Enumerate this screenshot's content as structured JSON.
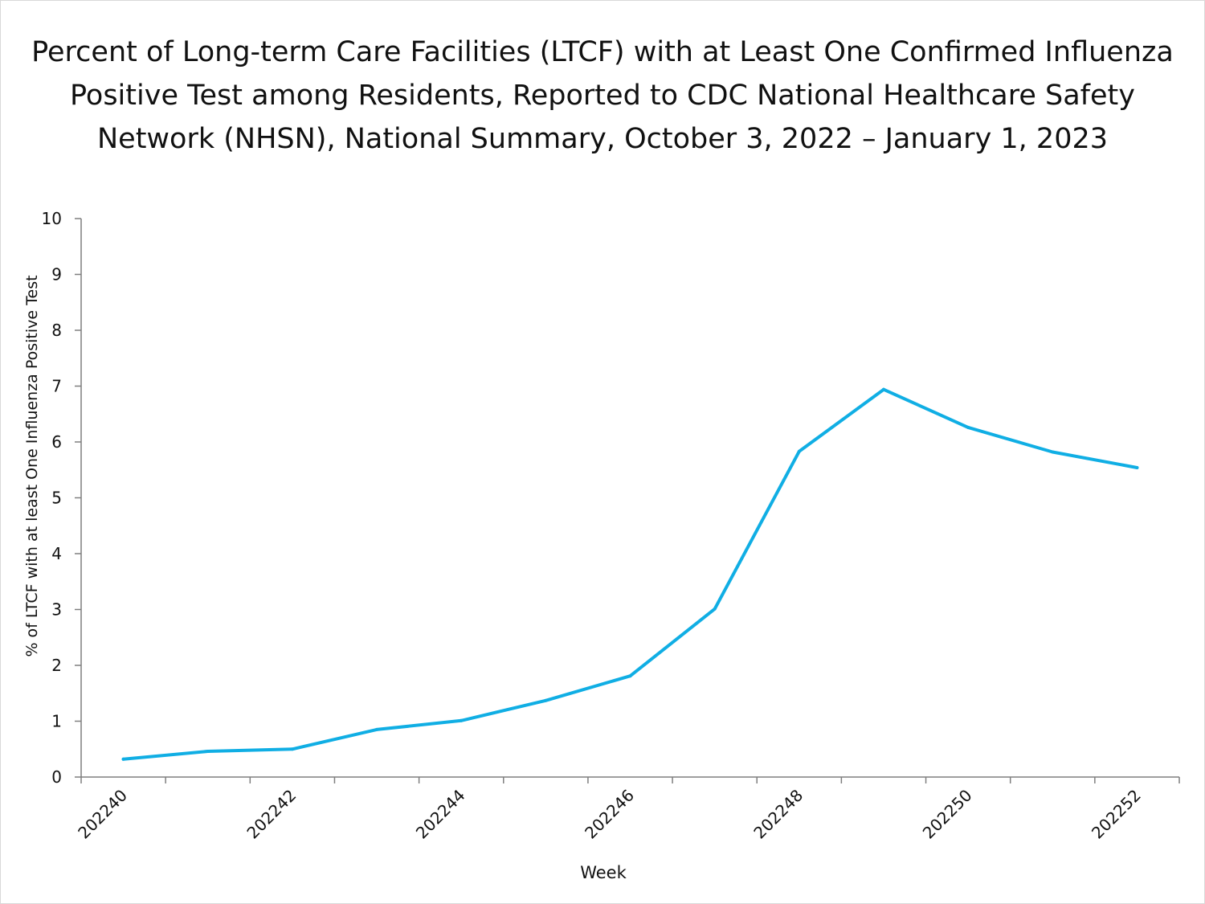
{
  "title_lines": [
    "Percent of Long-term Care Facilities (LTCF) with at Least One Confirmed Influenza",
    "Positive Test among Residents, Reported to CDC National Healthcare Safety",
    "Network (NHSN), National Summary, October 3, 2022 – January 1, 2023"
  ],
  "colors": {
    "line": "#10aee4",
    "axis": "#7f7f7f",
    "text": "#111111"
  },
  "chart_data": {
    "type": "line",
    "title": "Percent of Long-term Care Facilities (LTCF) with at Least One Confirmed Influenza Positive Test among Residents, Reported to CDC National Healthcare Safety Network (NHSN), National Summary, October 3, 2022 – January 1, 2023",
    "xlabel": "Week",
    "ylabel": "% of LTCF with at least One Influenza Positive Test",
    "ylim": [
      0,
      10
    ],
    "y_ticks": [
      0,
      1,
      2,
      3,
      4,
      5,
      6,
      7,
      8,
      9,
      10
    ],
    "categories": [
      "202240",
      "202241",
      "202242",
      "202243",
      "202244",
      "202245",
      "202246",
      "202247",
      "202248",
      "202249",
      "202250",
      "202251",
      "202252"
    ],
    "x_tick_labels": [
      "202240",
      "",
      "202242",
      "",
      "202244",
      "",
      "202246",
      "",
      "202248",
      "",
      "202250",
      "",
      "202252"
    ],
    "series": [
      {
        "name": "% of LTCF with at least One Influenza Positive Test",
        "values": [
          0.32,
          0.46,
          0.5,
          0.85,
          1.01,
          1.37,
          1.81,
          3.01,
          5.83,
          6.94,
          6.26,
          5.82,
          5.54
        ]
      }
    ],
    "grid": false,
    "legend": "none"
  }
}
